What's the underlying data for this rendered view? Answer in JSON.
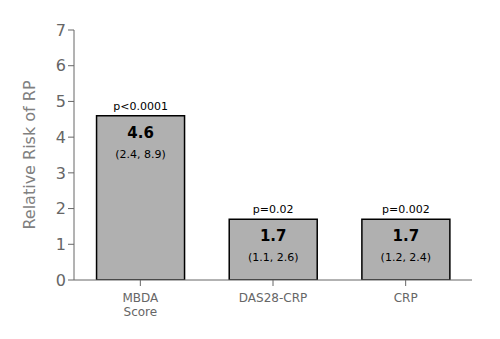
{
  "chart_data": {
    "type": "bar",
    "categories": [
      "MBDA\nScore",
      "DAS28-CRP",
      "CRP"
    ],
    "values": [
      4.6,
      1.7,
      1.7
    ],
    "color": "#b0b0b0",
    "ylabel": "Relative Risk of RP",
    "ylim": [
      0,
      7
    ],
    "yticks": [
      0,
      1,
      2,
      3,
      4,
      5,
      6,
      7
    ],
    "grid": false,
    "data_labels": true,
    "annotations": [
      {
        "category": "MBDA\nScore",
        "p_value": "p<0.0001",
        "ci_label": "(2.4, 8.9)"
      },
      {
        "category": "DAS28-CRP",
        "p_value": "p=0.02",
        "ci_label": "(1.1, 2.6)"
      },
      {
        "category": "CRP",
        "p_value": "p=0.002",
        "ci_label": "(1.2, 2.4)"
      }
    ]
  }
}
